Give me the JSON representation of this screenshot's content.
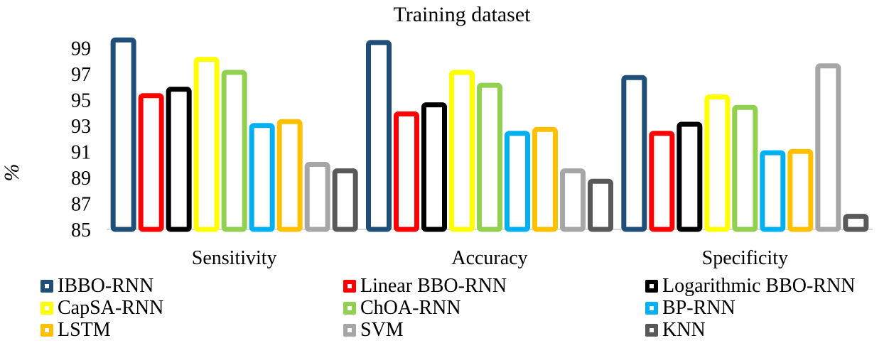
{
  "chart_data": {
    "type": "bar",
    "title": "Training dataset",
    "xlabel": "",
    "ylabel": "%",
    "ylim": [
      85,
      100.5
    ],
    "yticks": [
      85,
      87,
      89,
      91,
      93,
      95,
      97,
      99
    ],
    "grid": false,
    "legend_position": "bottom",
    "categories": [
      "Sensitivity",
      "Accuracy",
      "Specificity"
    ],
    "series": [
      {
        "name": "IBBO-RNN",
        "color": "#1F4E79",
        "values": [
          99.8,
          99.6,
          96.9
        ]
      },
      {
        "name": "Linear BBO-RNN",
        "color": "#FF0000",
        "values": [
          95.5,
          94.1,
          92.6
        ]
      },
      {
        "name": "Logarithmic BBO-RNN",
        "color": "#000000",
        "values": [
          96.0,
          94.8,
          93.3
        ]
      },
      {
        "name": "CapSA-RNN",
        "color": "#FFFF00",
        "values": [
          98.3,
          97.3,
          95.4
        ]
      },
      {
        "name": "ChOA-RNN",
        "color": "#92D050",
        "values": [
          97.3,
          96.3,
          94.6
        ]
      },
      {
        "name": "BP-RNN",
        "color": "#00B0F0",
        "values": [
          93.2,
          92.6,
          91.1
        ]
      },
      {
        "name": "LSTM",
        "color": "#FFC000",
        "values": [
          93.5,
          92.9,
          91.2
        ]
      },
      {
        "name": "SVM",
        "color": "#A6A6A6",
        "values": [
          90.2,
          89.7,
          97.8
        ]
      },
      {
        "name": "KNN",
        "color": "#595959",
        "values": [
          89.7,
          88.9,
          86.2
        ]
      }
    ]
  }
}
